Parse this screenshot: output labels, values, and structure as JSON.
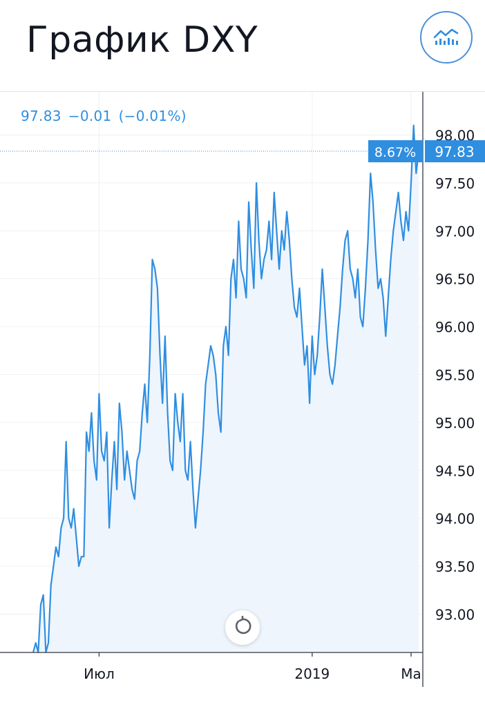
{
  "header": {
    "title": "График DXY",
    "chart_type_icon": "line-chart-icon"
  },
  "quote": {
    "price": "97.83",
    "change": "−0.01",
    "change_pct": "(−0.01%)"
  },
  "badges": {
    "percent": "8.67%",
    "last_price": "97.83"
  },
  "colors": {
    "line": "#2f8ee0",
    "area": "#eef5fd",
    "badge": "#2f8ee0",
    "grid": "#eef0f3",
    "axis_text": "#131722"
  },
  "controls": {
    "reset_icon": "reset-icon"
  },
  "chart_data": {
    "type": "line",
    "title": "",
    "xlabel": "",
    "ylabel": "",
    "ylim": [
      92.6,
      98.45
    ],
    "y_ticks": [
      93.0,
      93.5,
      94.0,
      94.5,
      95.0,
      95.5,
      96.0,
      96.5,
      97.0,
      97.5,
      98.0
    ],
    "y_tick_labels": [
      "93.00",
      "93.50",
      "94.00",
      "94.50",
      "95.00",
      "95.50",
      "96.00",
      "96.50",
      "97.00",
      "97.50",
      "98.00"
    ],
    "x_tick_labels": [
      "Июл",
      "2019",
      "Ма"
    ],
    "x_tick_indices": [
      26,
      110,
      149
    ],
    "last_value": 97.83,
    "grid": true,
    "area_fill": true,
    "series": [
      {
        "values": [
          92.6,
          92.7,
          92.6,
          93.1,
          93.2,
          92.6,
          92.7,
          93.3,
          93.5,
          93.7,
          93.6,
          93.9,
          94.0,
          94.8,
          94.0,
          93.9,
          94.1,
          93.8,
          93.5,
          93.6,
          93.6,
          94.9,
          94.7,
          95.1,
          94.6,
          94.4,
          95.3,
          94.7,
          94.6,
          94.9,
          93.9,
          94.4,
          94.8,
          94.3,
          95.2,
          94.9,
          94.4,
          94.7,
          94.5,
          94.3,
          94.2,
          94.6,
          94.7,
          95.1,
          95.4,
          95.0,
          95.7,
          96.7,
          96.6,
          96.4,
          95.7,
          95.2,
          95.9,
          95.1,
          94.6,
          94.5,
          95.3,
          95.0,
          94.8,
          95.3,
          94.5,
          94.4,
          94.8,
          94.3,
          93.9,
          94.2,
          94.5,
          94.9,
          95.4,
          95.6,
          95.8,
          95.7,
          95.5,
          95.1,
          94.9,
          95.8,
          96.0,
          95.7,
          96.5,
          96.7,
          96.3,
          97.1,
          96.6,
          96.5,
          96.3,
          97.3,
          96.8,
          96.4,
          97.5,
          96.9,
          96.5,
          96.7,
          96.8,
          97.1,
          96.7,
          97.4,
          97.0,
          96.6,
          97.0,
          96.8,
          97.2,
          96.9,
          96.5,
          96.2,
          96.1,
          96.4,
          96.0,
          95.6,
          95.8,
          95.2,
          95.9,
          95.5,
          95.7,
          96.1,
          96.6,
          96.2,
          95.8,
          95.5,
          95.4,
          95.6,
          95.9,
          96.2,
          96.6,
          96.9,
          97.0,
          96.6,
          96.5,
          96.3,
          96.6,
          96.1,
          96.0,
          96.4,
          96.9,
          97.6,
          97.3,
          96.8,
          96.4,
          96.5,
          96.3,
          95.9,
          96.3,
          96.7,
          97.0,
          97.2,
          97.4,
          97.1,
          96.9,
          97.2,
          97.0,
          97.5,
          98.1,
          97.6,
          97.83
        ]
      }
    ]
  }
}
